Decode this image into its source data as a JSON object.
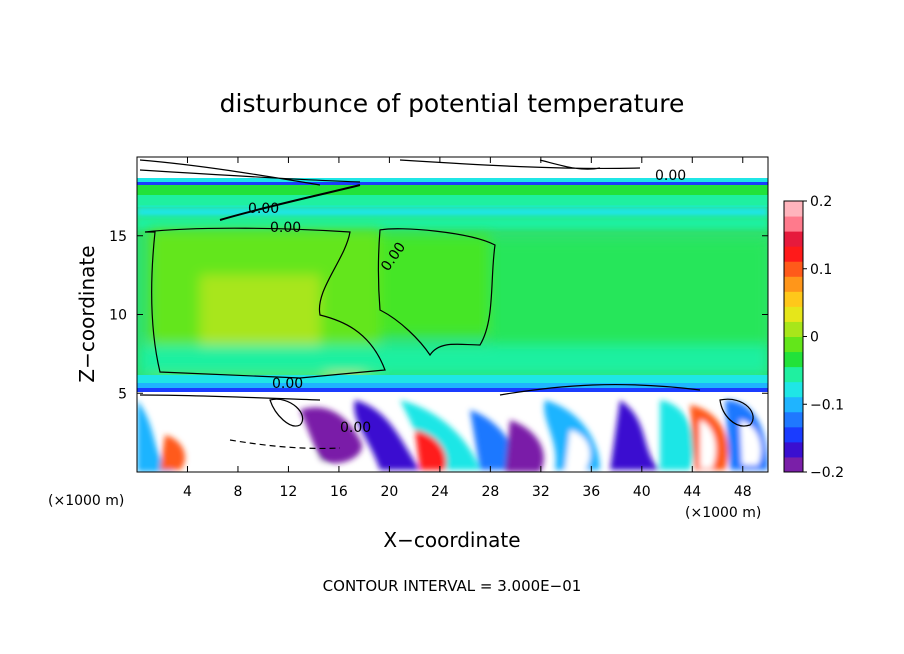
{
  "chart_data": {
    "type": "heatmap",
    "title": "disturbunce of potential temperature",
    "xlabel": "X−coordinate",
    "ylabel": "Z−coordinate",
    "x_unit_left": "(×1000 m)",
    "x_unit_right": "(×1000 m)",
    "xlim": [
      0,
      50
    ],
    "ylim": [
      0,
      20
    ],
    "x_ticks": [
      4,
      8,
      12,
      16,
      20,
      24,
      28,
      32,
      36,
      40,
      44,
      48
    ],
    "y_ticks": [
      5,
      10,
      15
    ],
    "colorbar": {
      "range": [
        -0.2,
        0.2
      ],
      "ticks": [
        0.2,
        0.1,
        0,
        -0.1,
        -0.2
      ],
      "tick_labels": [
        "0.2",
        "0.1",
        "0",
        "−0.1",
        "−0.2"
      ],
      "colors": [
        "#7a1fa8",
        "#3a0fd0",
        "#1a3cff",
        "#1f78ff",
        "#1fb4ff",
        "#1fe6e6",
        "#1ff0a0",
        "#22e23a",
        "#63e61a",
        "#a8e61a",
        "#e6e61a",
        "#ffc81a",
        "#ff961a",
        "#ff5a1a",
        "#ff1a1a",
        "#e61a3c",
        "#ff7a8c",
        "#ffb4bc"
      ]
    },
    "contour_labels": [
      "0.00",
      "0.00",
      "0.00",
      "0.00",
      "0.00",
      "0.00"
    ],
    "footer": "CONTOUR INTERVAL = 3.000E−01"
  }
}
